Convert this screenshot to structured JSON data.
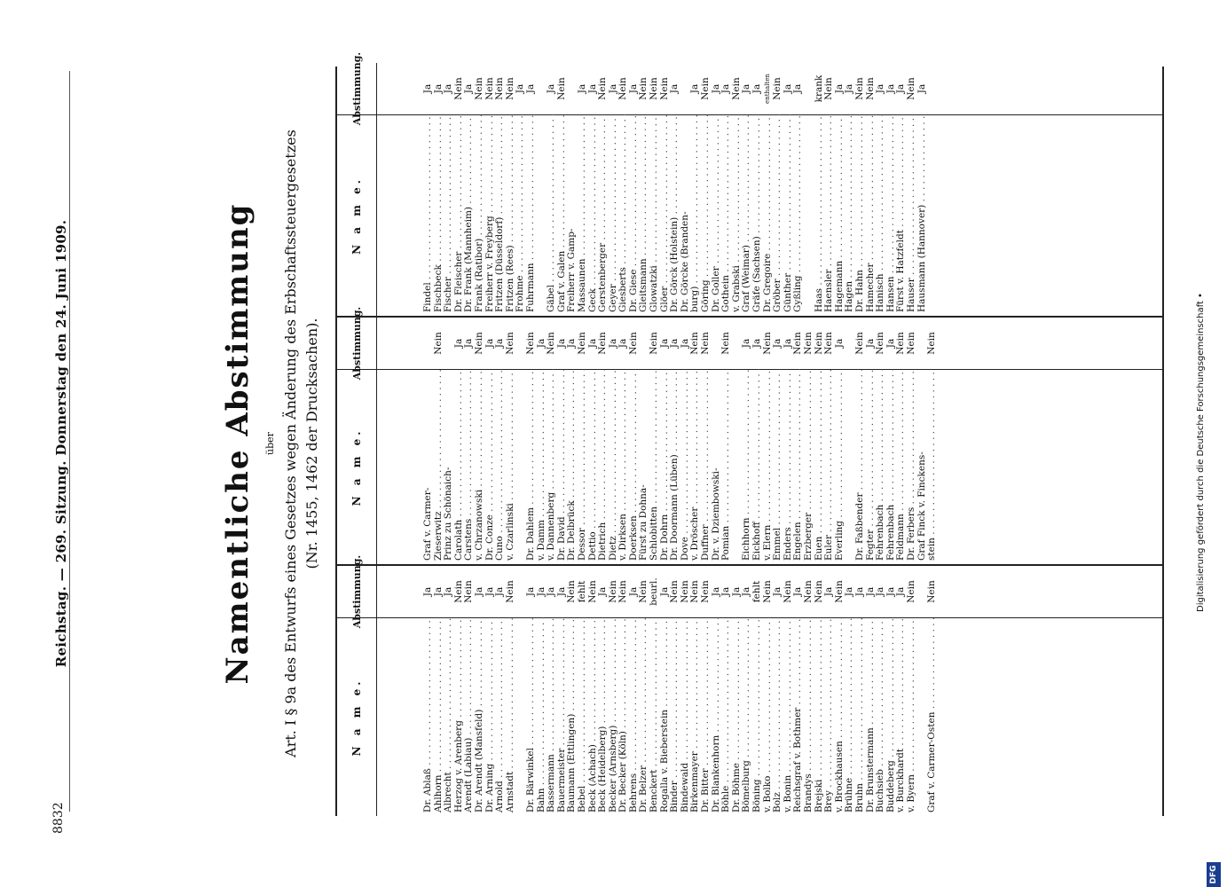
{
  "header": {
    "page_number": "8832",
    "running_head": "Reichstag. — 269. Sitzung. Donnerstag den 24. Juni 1909."
  },
  "title": "Namentliche Abstimmung",
  "ueber": "über",
  "subtitle_line1": "Art. I § 9a des Entwurfs eines Gesetzes wegen Änderung des Erbschaftssteuergesetzes",
  "subtitle_line2": "(Nr. 1455, 1462 der Drucksachen).",
  "table_headers": {
    "name": "N a m e.",
    "vote": "Abstimmung."
  },
  "columns": [
    [
      {
        "n": "Dr. Ablaß",
        "v": "Ja"
      },
      {
        "n": "Ahlhorn",
        "v": "Ja"
      },
      {
        "n": "Albrecht",
        "v": "Ja"
      },
      {
        "n": "Herzog v. Arenberg",
        "v": "Nein"
      },
      {
        "n": "Arendt (Labiau)",
        "v": "Nein"
      },
      {
        "n": "Dr. Arendt (Mansfeld)",
        "v": "Ja"
      },
      {
        "n": "Dr. Arning",
        "v": "Ja"
      },
      {
        "n": "Arnold",
        "v": "Ja"
      },
      {
        "n": "Arnstadt",
        "v": "Nein"
      },
      {
        "sp": true
      },
      {
        "n": "Dr. Bärwinkel",
        "v": "Ja"
      },
      {
        "n": "Bahn",
        "v": "Ja"
      },
      {
        "n": "Bassermann",
        "v": "Ja"
      },
      {
        "n": "Bauermeister",
        "v": "Ja"
      },
      {
        "n": "Baumann (Ettlingen)",
        "v": "Nein"
      },
      {
        "n": "Bebel",
        "v": "fehlt"
      },
      {
        "n": "Beck (Achach)",
        "v": "Nein"
      },
      {
        "n": "Beck (Heidelberg)",
        "v": "Ja"
      },
      {
        "n": "Becker (Arnsberg)",
        "v": "Nein"
      },
      {
        "n": "Dr. Becker (Köln)",
        "v": "Nein"
      },
      {
        "n": "Behrens",
        "v": "Ja"
      },
      {
        "n": "Dr. Belzer",
        "v": "Nein"
      },
      {
        "n": "Benckert",
        "v": "beurl."
      },
      {
        "n": "Rogalla v. Bieberstein",
        "v": "Ja"
      },
      {
        "n": "Binder",
        "v": "Nein"
      },
      {
        "n": "Bindewald",
        "v": "Nein"
      },
      {
        "n": "Birkenmayer",
        "v": "Nein"
      },
      {
        "n": "Dr. Bitter",
        "v": "Nein"
      },
      {
        "n": "Dr. Blankenhorn",
        "v": "Ja"
      },
      {
        "n": "Böhle",
        "v": "Ja"
      },
      {
        "n": "Dr. Böhme",
        "v": "Ja"
      },
      {
        "n": "Bömelburg",
        "v": "Ja"
      },
      {
        "n": "Böning",
        "v": "fehlt"
      },
      {
        "n": "v. Bolko",
        "v": "Nein"
      },
      {
        "n": "Bolz",
        "v": "Ja"
      },
      {
        "n": "v. Bonin",
        "v": "Nein"
      },
      {
        "n": "Reichsgraf v. Bothmer",
        "v": "Ja"
      },
      {
        "n": "Brandys",
        "v": "Nein"
      },
      {
        "n": "Brejski",
        "v": "Nein"
      },
      {
        "n": "Brey",
        "v": "Ja"
      },
      {
        "n": "v. Brockhausen",
        "v": "Nein"
      },
      {
        "n": "Brühne",
        "v": "Ja"
      },
      {
        "n": "Bruhn",
        "v": "Ja"
      },
      {
        "n": "Dr. Brunstermann",
        "v": "Ja"
      },
      {
        "n": "Buchsieb",
        "v": "Ja"
      },
      {
        "n": "Buddeberg",
        "v": "Ja"
      },
      {
        "n": "v. Burckhardt",
        "v": "Ja"
      },
      {
        "n": "v. Byern",
        "v": "Nein"
      },
      {
        "sp": true
      },
      {
        "n": "Graf v. Carmer-Osten",
        "v": "Nein"
      }
    ],
    [
      {
        "n": "Graf v. Carmer-",
        "v": "",
        "c": true
      },
      {
        "n": "  Zieserwitz",
        "v": "Nein"
      },
      {
        "n": "Prinz zu Schönaich-",
        "v": "",
        "c": true
      },
      {
        "n": "  Carolath",
        "v": "Ja"
      },
      {
        "n": "Carstens",
        "v": "Ja"
      },
      {
        "n": "v. Chrzanowski",
        "v": "Nein"
      },
      {
        "n": "Dr. Conze",
        "v": "Ja"
      },
      {
        "n": "Cuno",
        "v": "Ja"
      },
      {
        "n": "v. Czarlinski",
        "v": "Nein"
      },
      {
        "sp": true
      },
      {
        "n": "Dr. Dahlem",
        "v": "Nein"
      },
      {
        "n": "v. Damm",
        "v": "Ja"
      },
      {
        "n": "v. Dannenberg",
        "v": "Nein"
      },
      {
        "n": "Dr. David",
        "v": "Ja"
      },
      {
        "n": "Dr. Delbrück",
        "v": "Ja"
      },
      {
        "n": "Dessor",
        "v": "Nein"
      },
      {
        "n": "Dettio",
        "v": "Ja"
      },
      {
        "n": "Dietrich",
        "v": "Nein"
      },
      {
        "n": "Dietz",
        "v": "Ja"
      },
      {
        "n": "v. Dirksen",
        "v": "Ja"
      },
      {
        "n": "Doerksen",
        "v": "Nein"
      },
      {
        "n": "Fürst zu Dohna-",
        "v": "",
        "c": true
      },
      {
        "n": "  Schlobitten",
        "v": "Nein"
      },
      {
        "n": "Dr. Dohrn",
        "v": "Ja"
      },
      {
        "n": "Dr. Doormann (Lüben)",
        "v": "Ja"
      },
      {
        "n": "Dove",
        "v": "Ja"
      },
      {
        "n": "v. Dröscher",
        "v": "Nein"
      },
      {
        "n": "Duffner",
        "v": "Nein"
      },
      {
        "n": "Dr. v. Dziembowski-",
        "v": "",
        "c": true
      },
      {
        "n": "  Pomian",
        "v": "Nein"
      },
      {
        "sp": true
      },
      {
        "n": "Eichhorn",
        "v": "Ja"
      },
      {
        "n": "Eickhoff",
        "v": "Ja"
      },
      {
        "n": "v. Elern",
        "v": "Nein"
      },
      {
        "n": "Emmel",
        "v": "Ja"
      },
      {
        "n": "Enders",
        "v": "Ja"
      },
      {
        "n": "Engelen",
        "v": "Nein"
      },
      {
        "n": "Erzberger",
        "v": "Nein"
      },
      {
        "n": "Euen",
        "v": "Nein"
      },
      {
        "n": "Euler",
        "v": "Nein"
      },
      {
        "n": "Everling",
        "v": "Ja"
      },
      {
        "sp": true
      },
      {
        "n": "Dr. Faßbender",
        "v": "Nein"
      },
      {
        "n": "Fegter",
        "v": "Ja"
      },
      {
        "n": "Fehrenbach",
        "v": "Nein"
      },
      {
        "n": "Fehrenbach",
        "v": "Ja"
      },
      {
        "n": "Feldmann",
        "v": "Nein"
      },
      {
        "n": "Dr. Ferbers",
        "v": "Nein"
      },
      {
        "n": "Graf Finck v. Finckens-",
        "v": "",
        "c": true
      },
      {
        "n": "  stein",
        "v": "Nein"
      }
    ],
    [
      {
        "n": "Findel",
        "v": "Ja"
      },
      {
        "n": "Fischbeck",
        "v": "Ja"
      },
      {
        "n": "Fischer",
        "v": "Ja"
      },
      {
        "n": "Dr. Fleischer",
        "v": "Nein"
      },
      {
        "n": "Dr. Frank (Mannheim)",
        "v": "Ja"
      },
      {
        "n": "Frank (Ratibor)",
        "v": "Nein"
      },
      {
        "n": "Freiherr v. Freyberg",
        "v": "Nein"
      },
      {
        "n": "Fritzen (Düsseldorf)",
        "v": "Nein"
      },
      {
        "n": "Fritzen (Rees)",
        "v": "Nein"
      },
      {
        "n": "Frohme",
        "v": "Ja"
      },
      {
        "n": "Fuhrmann",
        "v": "Ja"
      },
      {
        "sp": true
      },
      {
        "n": "Gäbel",
        "v": "Ja"
      },
      {
        "n": "Graf v. Galen",
        "v": "Nein"
      },
      {
        "n": "Freiherr v. Gamp-",
        "v": "",
        "c": true
      },
      {
        "n": "  Massaunen",
        "v": "Ja"
      },
      {
        "n": "Geck",
        "v": "Ja"
      },
      {
        "n": "Gerstenberger",
        "v": "Nein"
      },
      {
        "n": "Geyer",
        "v": "Ja"
      },
      {
        "n": "Giesberts",
        "v": "Nein"
      },
      {
        "n": "Dr. Giese",
        "v": "Ja"
      },
      {
        "n": "Gleitsmann",
        "v": "Nein"
      },
      {
        "n": "Glowatzki",
        "v": "Nein"
      },
      {
        "n": "Glöer",
        "v": "Nein"
      },
      {
        "n": "Dr. Görck (Holstein)",
        "v": "Ja"
      },
      {
        "n": "Dr. Görcke (Branden-",
        "v": "",
        "c": true
      },
      {
        "n": "  burg)",
        "v": "Ja"
      },
      {
        "n": "Göring",
        "v": "Nein"
      },
      {
        "n": "Dr. Goller",
        "v": "Ja"
      },
      {
        "n": "Gothein",
        "v": "Ja"
      },
      {
        "n": "v. Grabski",
        "v": "Nein"
      },
      {
        "n": "Graf (Weimar)",
        "v": "Ja"
      },
      {
        "n": "Gräfe (Sachsen)",
        "v": "Ja"
      },
      {
        "n": "Dr. Gregoire",
        "v": "enthalten"
      },
      {
        "n": "Gröber",
        "v": "Nein"
      },
      {
        "n": "Günther",
        "v": "Ja"
      },
      {
        "n": "Gyßling",
        "v": "Ja"
      },
      {
        "sp": true
      },
      {
        "n": "Haas",
        "v": "krank"
      },
      {
        "n": "Haensler",
        "v": "Nein"
      },
      {
        "n": "Hagemann",
        "v": "Ja"
      },
      {
        "n": "Hagen",
        "v": "Ja"
      },
      {
        "n": "Dr. Hahn",
        "v": "Nein"
      },
      {
        "n": "Hamecher",
        "v": "Nein"
      },
      {
        "n": "Hanisch",
        "v": "Ja"
      },
      {
        "n": "Hansen",
        "v": "Ja"
      },
      {
        "n": "Fürst v. Hatzfeldt",
        "v": "Ja"
      },
      {
        "n": "Hauser",
        "v": "Nein"
      },
      {
        "n": "Hausmann (Hannover)",
        "v": "Ja"
      }
    ]
  ],
  "side_note": "Digitalisierung gefördert durch die Deutsche Forschungsgemeinschaft •",
  "logo_text": "DFG"
}
